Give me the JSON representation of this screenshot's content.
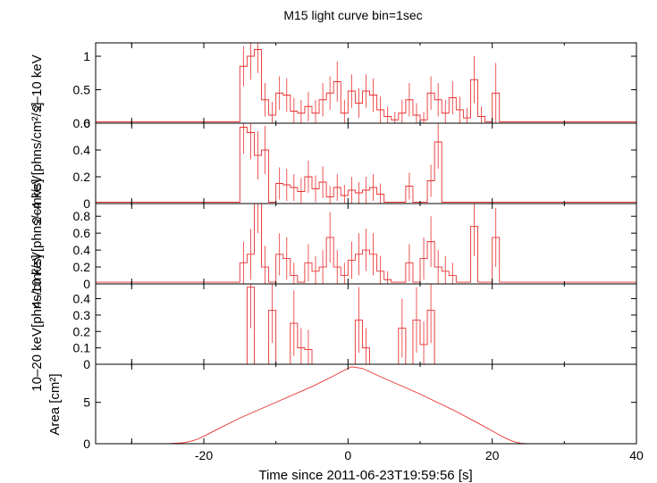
{
  "chart_data": {
    "type": "line",
    "title": "M15 light curve bin=1sec",
    "xlabel": "Time since 2011-06-23T19:59:56 [s]",
    "xlim": [
      -35,
      40
    ],
    "x_ticks": [
      -20,
      0,
      20,
      40
    ],
    "colors": {
      "data": "#e83030",
      "frame": "#000000",
      "background": "#ffffff"
    },
    "panels": [
      {
        "id": "p1",
        "ylabel": "2–10 keV",
        "ylim": [
          0,
          1.2
        ],
        "yticks": [
          0,
          0.5,
          1
        ],
        "ytick_labels": [
          "0",
          "0.5",
          "1"
        ],
        "x": [
          -35,
          -34,
          -33,
          -32,
          -31,
          -30,
          -29,
          -28,
          -27,
          -26,
          -25,
          -24,
          -23,
          -22,
          -21,
          -20,
          -19,
          -18,
          -17,
          -16,
          -15,
          -14,
          -13,
          -12,
          -11,
          -10,
          -9,
          -8,
          -7,
          -6,
          -5,
          -4,
          -3,
          -2,
          -1,
          0,
          1,
          2,
          3,
          4,
          5,
          6,
          7,
          8,
          9,
          10,
          11,
          12,
          13,
          14,
          15,
          16,
          17,
          18,
          19,
          20,
          21,
          22,
          23,
          24,
          25,
          26,
          27,
          28,
          29,
          30,
          31,
          32,
          33,
          34,
          35,
          36,
          37,
          38,
          39
        ],
        "y": [
          0.02,
          0.02,
          0.02,
          0.02,
          0.02,
          0.02,
          0.02,
          0.02,
          0.02,
          0.02,
          0.02,
          0.02,
          0.02,
          0.02,
          0.02,
          0.02,
          0.02,
          0.02,
          0.02,
          0.02,
          0.85,
          1.0,
          1.1,
          0.35,
          0.12,
          0.45,
          0.42,
          0.18,
          0.15,
          0.25,
          0.15,
          0.35,
          0.45,
          0.62,
          0.15,
          0.48,
          0.3,
          0.48,
          0.42,
          0.2,
          0.1,
          0.05,
          0.15,
          0.35,
          0.12,
          0.05,
          0.45,
          0.35,
          0.15,
          0.38,
          0.2,
          0.08,
          0.65,
          0.1,
          0.02,
          0.45,
          0.02,
          0.02,
          0.02,
          0.02,
          0.02,
          0.02,
          0.02,
          0.02,
          0.02,
          0.02,
          0.02,
          0.02,
          0.02,
          0.02,
          0.02,
          0.02,
          0.02,
          0.02,
          0.02
        ],
        "yerr": [
          0.02,
          0.02,
          0.02,
          0.02,
          0.02,
          0.02,
          0.02,
          0.02,
          0.02,
          0.02,
          0.02,
          0.02,
          0.02,
          0.02,
          0.02,
          0.02,
          0.02,
          0.02,
          0.02,
          0.02,
          0.3,
          0.35,
          0.35,
          0.25,
          0.2,
          0.25,
          0.25,
          0.2,
          0.2,
          0.22,
          0.2,
          0.25,
          0.25,
          0.3,
          0.2,
          0.25,
          0.22,
          0.25,
          0.25,
          0.2,
          0.15,
          0.12,
          0.2,
          0.25,
          0.18,
          0.12,
          0.25,
          0.25,
          0.2,
          0.25,
          0.2,
          0.15,
          0.35,
          0.15,
          0.02,
          0.45,
          0.02,
          0.02,
          0.02,
          0.02,
          0.02,
          0.02,
          0.02,
          0.02,
          0.02,
          0.02,
          0.02,
          0.02,
          0.02,
          0.02,
          0.02,
          0.02,
          0.02,
          0.02,
          0.02
        ]
      },
      {
        "id": "p2",
        "ylabel": "2–4 keV",
        "ylabel_unit": "[phns/cm²/s]",
        "ylim": [
          0,
          0.6
        ],
        "yticks": [
          0,
          0.2,
          0.4,
          0.6
        ],
        "ytick_labels": [
          "0",
          "0.2",
          "0.4",
          "0.6"
        ],
        "x": [
          -35,
          -34,
          -33,
          -32,
          -31,
          -30,
          -29,
          -28,
          -27,
          -26,
          -25,
          -24,
          -23,
          -22,
          -21,
          -20,
          -19,
          -18,
          -17,
          -16,
          -15,
          -14,
          -13,
          -12,
          -11,
          -10,
          -9,
          -8,
          -7,
          -6,
          -5,
          -4,
          -3,
          -2,
          -1,
          0,
          1,
          2,
          3,
          4,
          5,
          6,
          7,
          8,
          9,
          10,
          11,
          12,
          13,
          14,
          15,
          16,
          17,
          18,
          19,
          20,
          21,
          22,
          23,
          24,
          25,
          26,
          27,
          28,
          29,
          30,
          31,
          32,
          33,
          34,
          35,
          36,
          37,
          38,
          39
        ],
        "y": [
          0.01,
          0.01,
          0.01,
          0.01,
          0.01,
          0.01,
          0.01,
          0.01,
          0.01,
          0.01,
          0.01,
          0.01,
          0.01,
          0.01,
          0.01,
          0.01,
          0.01,
          0.01,
          0.01,
          0.01,
          0.57,
          0.53,
          0.36,
          0.4,
          0.01,
          0.15,
          0.14,
          0.12,
          0.09,
          0.2,
          0.11,
          0.16,
          0.05,
          0.12,
          0.06,
          0.1,
          0.08,
          0.1,
          0.12,
          0.07,
          0.01,
          0.01,
          0.01,
          0.13,
          0.01,
          0.01,
          0.17,
          0.46,
          0.01,
          0.01,
          0.01,
          0.01,
          0.01,
          0.01,
          0.01,
          0.01,
          0.01,
          0.01,
          0.01,
          0.01,
          0.01,
          0.01,
          0.01,
          0.01,
          0.01,
          0.01,
          0.01,
          0.01,
          0.01,
          0.01,
          0.01,
          0.01,
          0.01,
          0.01,
          0.01
        ],
        "yerr": [
          0.01,
          0.01,
          0.01,
          0.01,
          0.01,
          0.01,
          0.01,
          0.01,
          0.01,
          0.01,
          0.01,
          0.01,
          0.01,
          0.01,
          0.01,
          0.01,
          0.01,
          0.01,
          0.01,
          0.01,
          0.2,
          0.2,
          0.18,
          0.18,
          0.01,
          0.12,
          0.12,
          0.1,
          0.1,
          0.12,
          0.1,
          0.12,
          0.08,
          0.1,
          0.08,
          0.1,
          0.08,
          0.1,
          0.1,
          0.08,
          0.01,
          0.01,
          0.01,
          0.1,
          0.01,
          0.01,
          0.12,
          0.2,
          0.01,
          0.01,
          0.01,
          0.01,
          0.01,
          0.01,
          0.01,
          0.01,
          0.01,
          0.01,
          0.01,
          0.01,
          0.01,
          0.01,
          0.01,
          0.01,
          0.01,
          0.01,
          0.01,
          0.01,
          0.01,
          0.01,
          0.01,
          0.01,
          0.01,
          0.01,
          0.01
        ]
      },
      {
        "id": "p3",
        "ylabel": "4–10 keV",
        "ylabel_unit": "[phns/cm²/s]",
        "ylim": [
          0,
          0.95
        ],
        "yticks": [
          0,
          0.2,
          0.4,
          0.6,
          0.8
        ],
        "ytick_labels": [
          "0",
          "0.2",
          "0.4",
          "0.6",
          "0.8"
        ],
        "x": [
          -35,
          -34,
          -33,
          -32,
          -31,
          -30,
          -29,
          -28,
          -27,
          -26,
          -25,
          -24,
          -23,
          -22,
          -21,
          -20,
          -19,
          -18,
          -17,
          -16,
          -15,
          -14,
          -13,
          -12,
          -11,
          -10,
          -9,
          -8,
          -7,
          -6,
          -5,
          -4,
          -3,
          -2,
          -1,
          0,
          1,
          2,
          3,
          4,
          5,
          6,
          7,
          8,
          9,
          10,
          11,
          12,
          13,
          14,
          15,
          16,
          17,
          18,
          19,
          20,
          21,
          22,
          23,
          24,
          25,
          26,
          27,
          28,
          29,
          30,
          31,
          32,
          33,
          34,
          35,
          36,
          37,
          38,
          39
        ],
        "y": [
          0.02,
          0.02,
          0.02,
          0.02,
          0.02,
          0.02,
          0.02,
          0.02,
          0.02,
          0.02,
          0.02,
          0.02,
          0.02,
          0.02,
          0.02,
          0.02,
          0.02,
          0.02,
          0.02,
          0.02,
          0.25,
          0.35,
          0.95,
          0.2,
          0.02,
          0.35,
          0.3,
          0.1,
          0.02,
          0.25,
          0.15,
          0.2,
          0.55,
          0.2,
          0.1,
          0.28,
          0.35,
          0.4,
          0.35,
          0.15,
          0.05,
          0.02,
          0.02,
          0.25,
          0.02,
          0.3,
          0.5,
          0.2,
          0.15,
          0.1,
          0.02,
          0.02,
          0.68,
          0.02,
          0.02,
          0.55,
          0.02,
          0.02,
          0.02,
          0.02,
          0.02,
          0.02,
          0.02,
          0.02,
          0.02,
          0.02,
          0.02,
          0.02,
          0.02,
          0.02,
          0.02,
          0.02,
          0.02,
          0.02,
          0.02
        ],
        "yerr": [
          0.02,
          0.02,
          0.02,
          0.02,
          0.02,
          0.02,
          0.02,
          0.02,
          0.02,
          0.02,
          0.02,
          0.02,
          0.02,
          0.02,
          0.02,
          0.02,
          0.02,
          0.02,
          0.02,
          0.02,
          0.25,
          0.3,
          0.35,
          0.25,
          0.02,
          0.25,
          0.25,
          0.15,
          0.02,
          0.22,
          0.18,
          0.2,
          0.3,
          0.2,
          0.15,
          0.22,
          0.25,
          0.25,
          0.25,
          0.18,
          0.1,
          0.02,
          0.02,
          0.22,
          0.02,
          0.25,
          0.3,
          0.2,
          0.18,
          0.15,
          0.02,
          0.02,
          0.35,
          0.02,
          0.02,
          0.35,
          0.02,
          0.02,
          0.02,
          0.02,
          0.02,
          0.02,
          0.02,
          0.02,
          0.02,
          0.02,
          0.02,
          0.02,
          0.02,
          0.02,
          0.02,
          0.02,
          0.02,
          0.02,
          0.02
        ]
      },
      {
        "id": "p4",
        "ylabel": "10–20 keV",
        "ylabel_unit": "[phns/cm²/s]",
        "ylim": [
          0,
          0.49
        ],
        "yticks": [
          0,
          0.1,
          0.2,
          0.3,
          0.4
        ],
        "ytick_labels": [
          "0",
          "0.1",
          "0.2",
          "0.3",
          "0.4"
        ],
        "x": [
          -35,
          -34,
          -33,
          -32,
          -31,
          -30,
          -29,
          -28,
          -27,
          -26,
          -25,
          -24,
          -23,
          -22,
          -21,
          -20,
          -19,
          -18,
          -17,
          -16,
          -15,
          -14,
          -13,
          -12,
          -11,
          -10,
          -9,
          -8,
          -7,
          -6,
          -5,
          -4,
          -3,
          -2,
          -1,
          0,
          1,
          2,
          3,
          4,
          5,
          6,
          7,
          8,
          9,
          10,
          11,
          12,
          13,
          14,
          15,
          16,
          17,
          18,
          19,
          20,
          21,
          22,
          23,
          24,
          25,
          26,
          27,
          28,
          29,
          30,
          31,
          32,
          33,
          34,
          35,
          36,
          37,
          38,
          39
        ],
        "y": [
          0.0,
          0.0,
          0.0,
          0.0,
          0.0,
          0.0,
          0.0,
          0.0,
          0.0,
          0.0,
          0.0,
          0.0,
          0.0,
          0.0,
          0.0,
          0.0,
          0.0,
          0.0,
          0.0,
          0.0,
          0.0,
          0.47,
          0.0,
          0.0,
          0.33,
          0.0,
          0.0,
          0.25,
          0.1,
          0.09,
          0.0,
          0.0,
          0.0,
          0.0,
          0.0,
          0.0,
          0.27,
          0.1,
          0.0,
          0.0,
          0.0,
          0.0,
          0.22,
          0.0,
          0.27,
          0.12,
          0.33,
          0.0,
          0.0,
          0.0,
          0.0,
          0.0,
          0.0,
          0.0,
          0.0,
          0.0,
          0.0,
          0.0,
          0.0,
          0.0,
          0.0,
          0.0,
          0.0,
          0.0,
          0.0,
          0.0,
          0.0,
          0.0,
          0.0,
          0.0,
          0.0,
          0.0,
          0.0,
          0.0,
          0.0
        ],
        "yerr": [
          0.0,
          0.0,
          0.0,
          0.0,
          0.0,
          0.0,
          0.0,
          0.0,
          0.0,
          0.0,
          0.0,
          0.0,
          0.0,
          0.0,
          0.0,
          0.0,
          0.0,
          0.0,
          0.0,
          0.0,
          0.0,
          0.25,
          0.0,
          0.0,
          0.2,
          0.0,
          0.0,
          0.2,
          0.12,
          0.12,
          0.0,
          0.0,
          0.0,
          0.0,
          0.0,
          0.0,
          0.2,
          0.12,
          0.0,
          0.0,
          0.0,
          0.0,
          0.18,
          0.0,
          0.2,
          0.14,
          0.2,
          0.0,
          0.0,
          0.0,
          0.0,
          0.0,
          0.0,
          0.0,
          0.0,
          0.0,
          0.0,
          0.0,
          0.0,
          0.0,
          0.0,
          0.0,
          0.0,
          0.0,
          0.0,
          0.0,
          0.0,
          0.0,
          0.0,
          0.0,
          0.0,
          0.0,
          0.0,
          0.0,
          0.0
        ]
      },
      {
        "id": "p5",
        "ylabel": "Area [cm²]",
        "ylim": [
          0,
          9.6
        ],
        "yticks": [
          0,
          5
        ],
        "ytick_labels": [
          "0",
          "5"
        ],
        "curve_x": [
          -35,
          -30,
          -25,
          -23,
          -22,
          -21,
          -20,
          -18,
          -15,
          -10,
          -5,
          -2,
          0,
          0.5,
          2,
          5,
          10,
          15,
          18,
          20,
          21,
          22,
          23,
          24,
          25,
          30,
          35,
          40
        ],
        "curve_y": [
          0,
          0,
          0,
          0.1,
          0.25,
          0.5,
          0.9,
          1.8,
          3.1,
          5.0,
          6.9,
          8.2,
          9.1,
          9.3,
          9.1,
          7.9,
          6.0,
          3.9,
          2.5,
          1.55,
          1.05,
          0.6,
          0.25,
          0.05,
          0,
          0,
          0,
          0
        ]
      }
    ]
  }
}
